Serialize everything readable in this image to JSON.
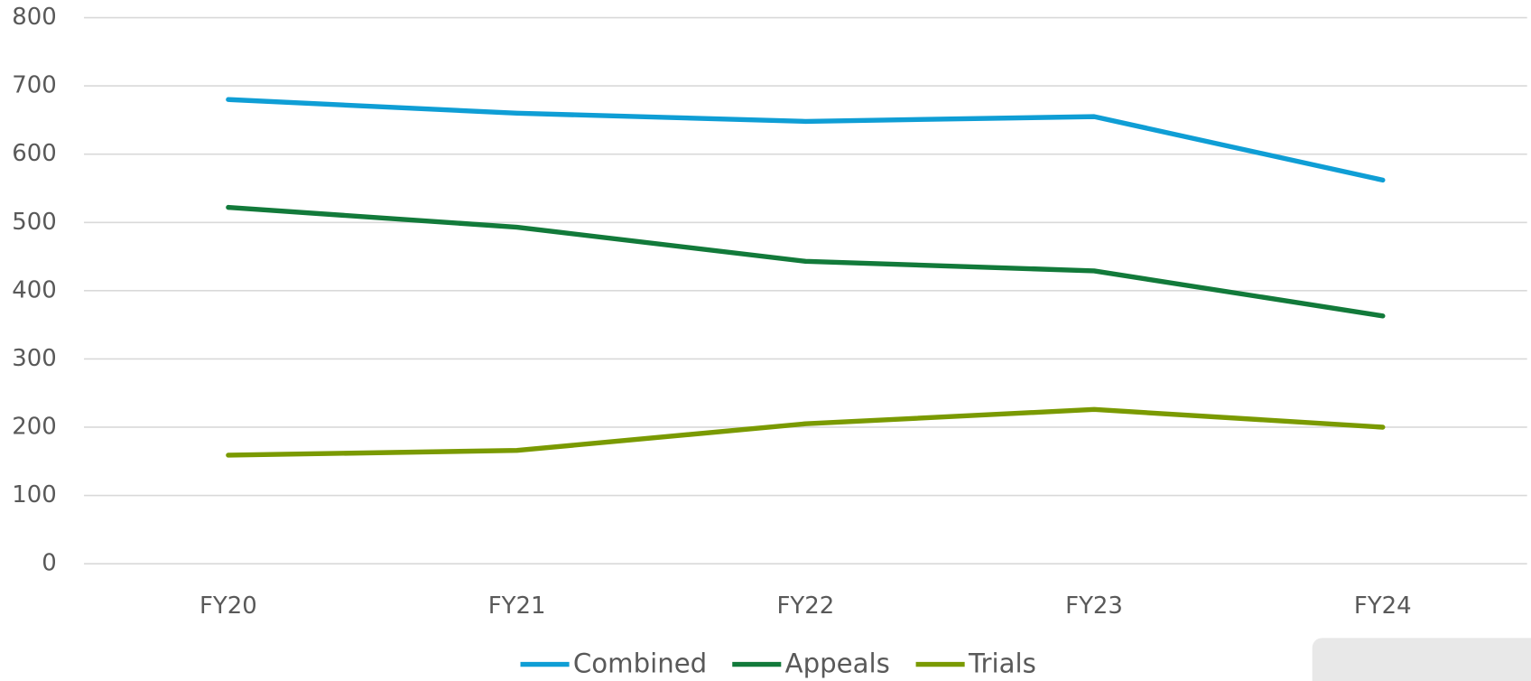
{
  "chart_data": {
    "type": "line",
    "categories": [
      "FY20",
      "FY21",
      "FY22",
      "FY23",
      "FY24"
    ],
    "series": [
      {
        "name": "Combined",
        "color": "#0f9ed5",
        "values": [
          680,
          660,
          648,
          655,
          562
        ]
      },
      {
        "name": "Appeals",
        "color": "#127a3a",
        "values": [
          522,
          493,
          443,
          429,
          363
        ]
      },
      {
        "name": "Trials",
        "color": "#7a9a01",
        "values": [
          159,
          166,
          205,
          226,
          200
        ]
      }
    ],
    "ylim": [
      0,
      800
    ],
    "yticks": [
      0,
      100,
      200,
      300,
      400,
      500,
      600,
      700,
      800
    ],
    "grid": true,
    "legend": "bottom"
  }
}
